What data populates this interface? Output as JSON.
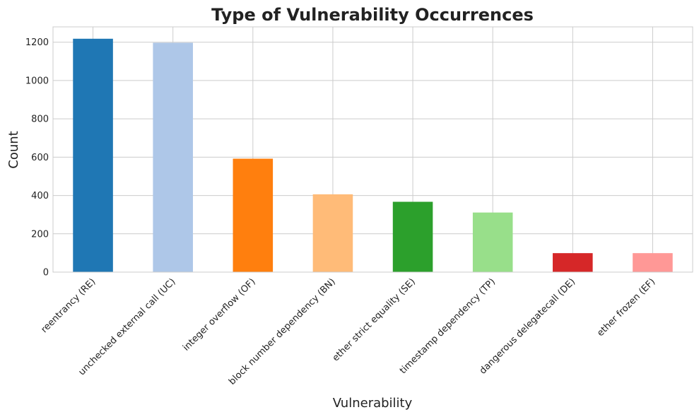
{
  "chart_data": {
    "type": "bar",
    "title": "Type of Vulnerability Occurrences",
    "xlabel": "Vulnerability",
    "ylabel": "Count",
    "categories": [
      "reentrancy (RE)",
      "unchecked external call (UC)",
      "integer overflow (OF)",
      "block number dependency (BN)",
      "ether strict equality (SE)",
      "timestamp dependency (TP)",
      "dangerous delegatecall (DE)",
      "ether frozen (EF)"
    ],
    "values": [
      1218,
      1197,
      592,
      406,
      367,
      311,
      99,
      99
    ],
    "colors": [
      "#1f77b4",
      "#aec7e8",
      "#ff7f0e",
      "#ffbb78",
      "#2ca02c",
      "#98df8a",
      "#d62728",
      "#ff9896"
    ],
    "ylim": [
      0,
      1280
    ],
    "yticks": [
      0,
      200,
      400,
      600,
      800,
      1000,
      1200
    ],
    "grid": true,
    "legend": "none"
  }
}
